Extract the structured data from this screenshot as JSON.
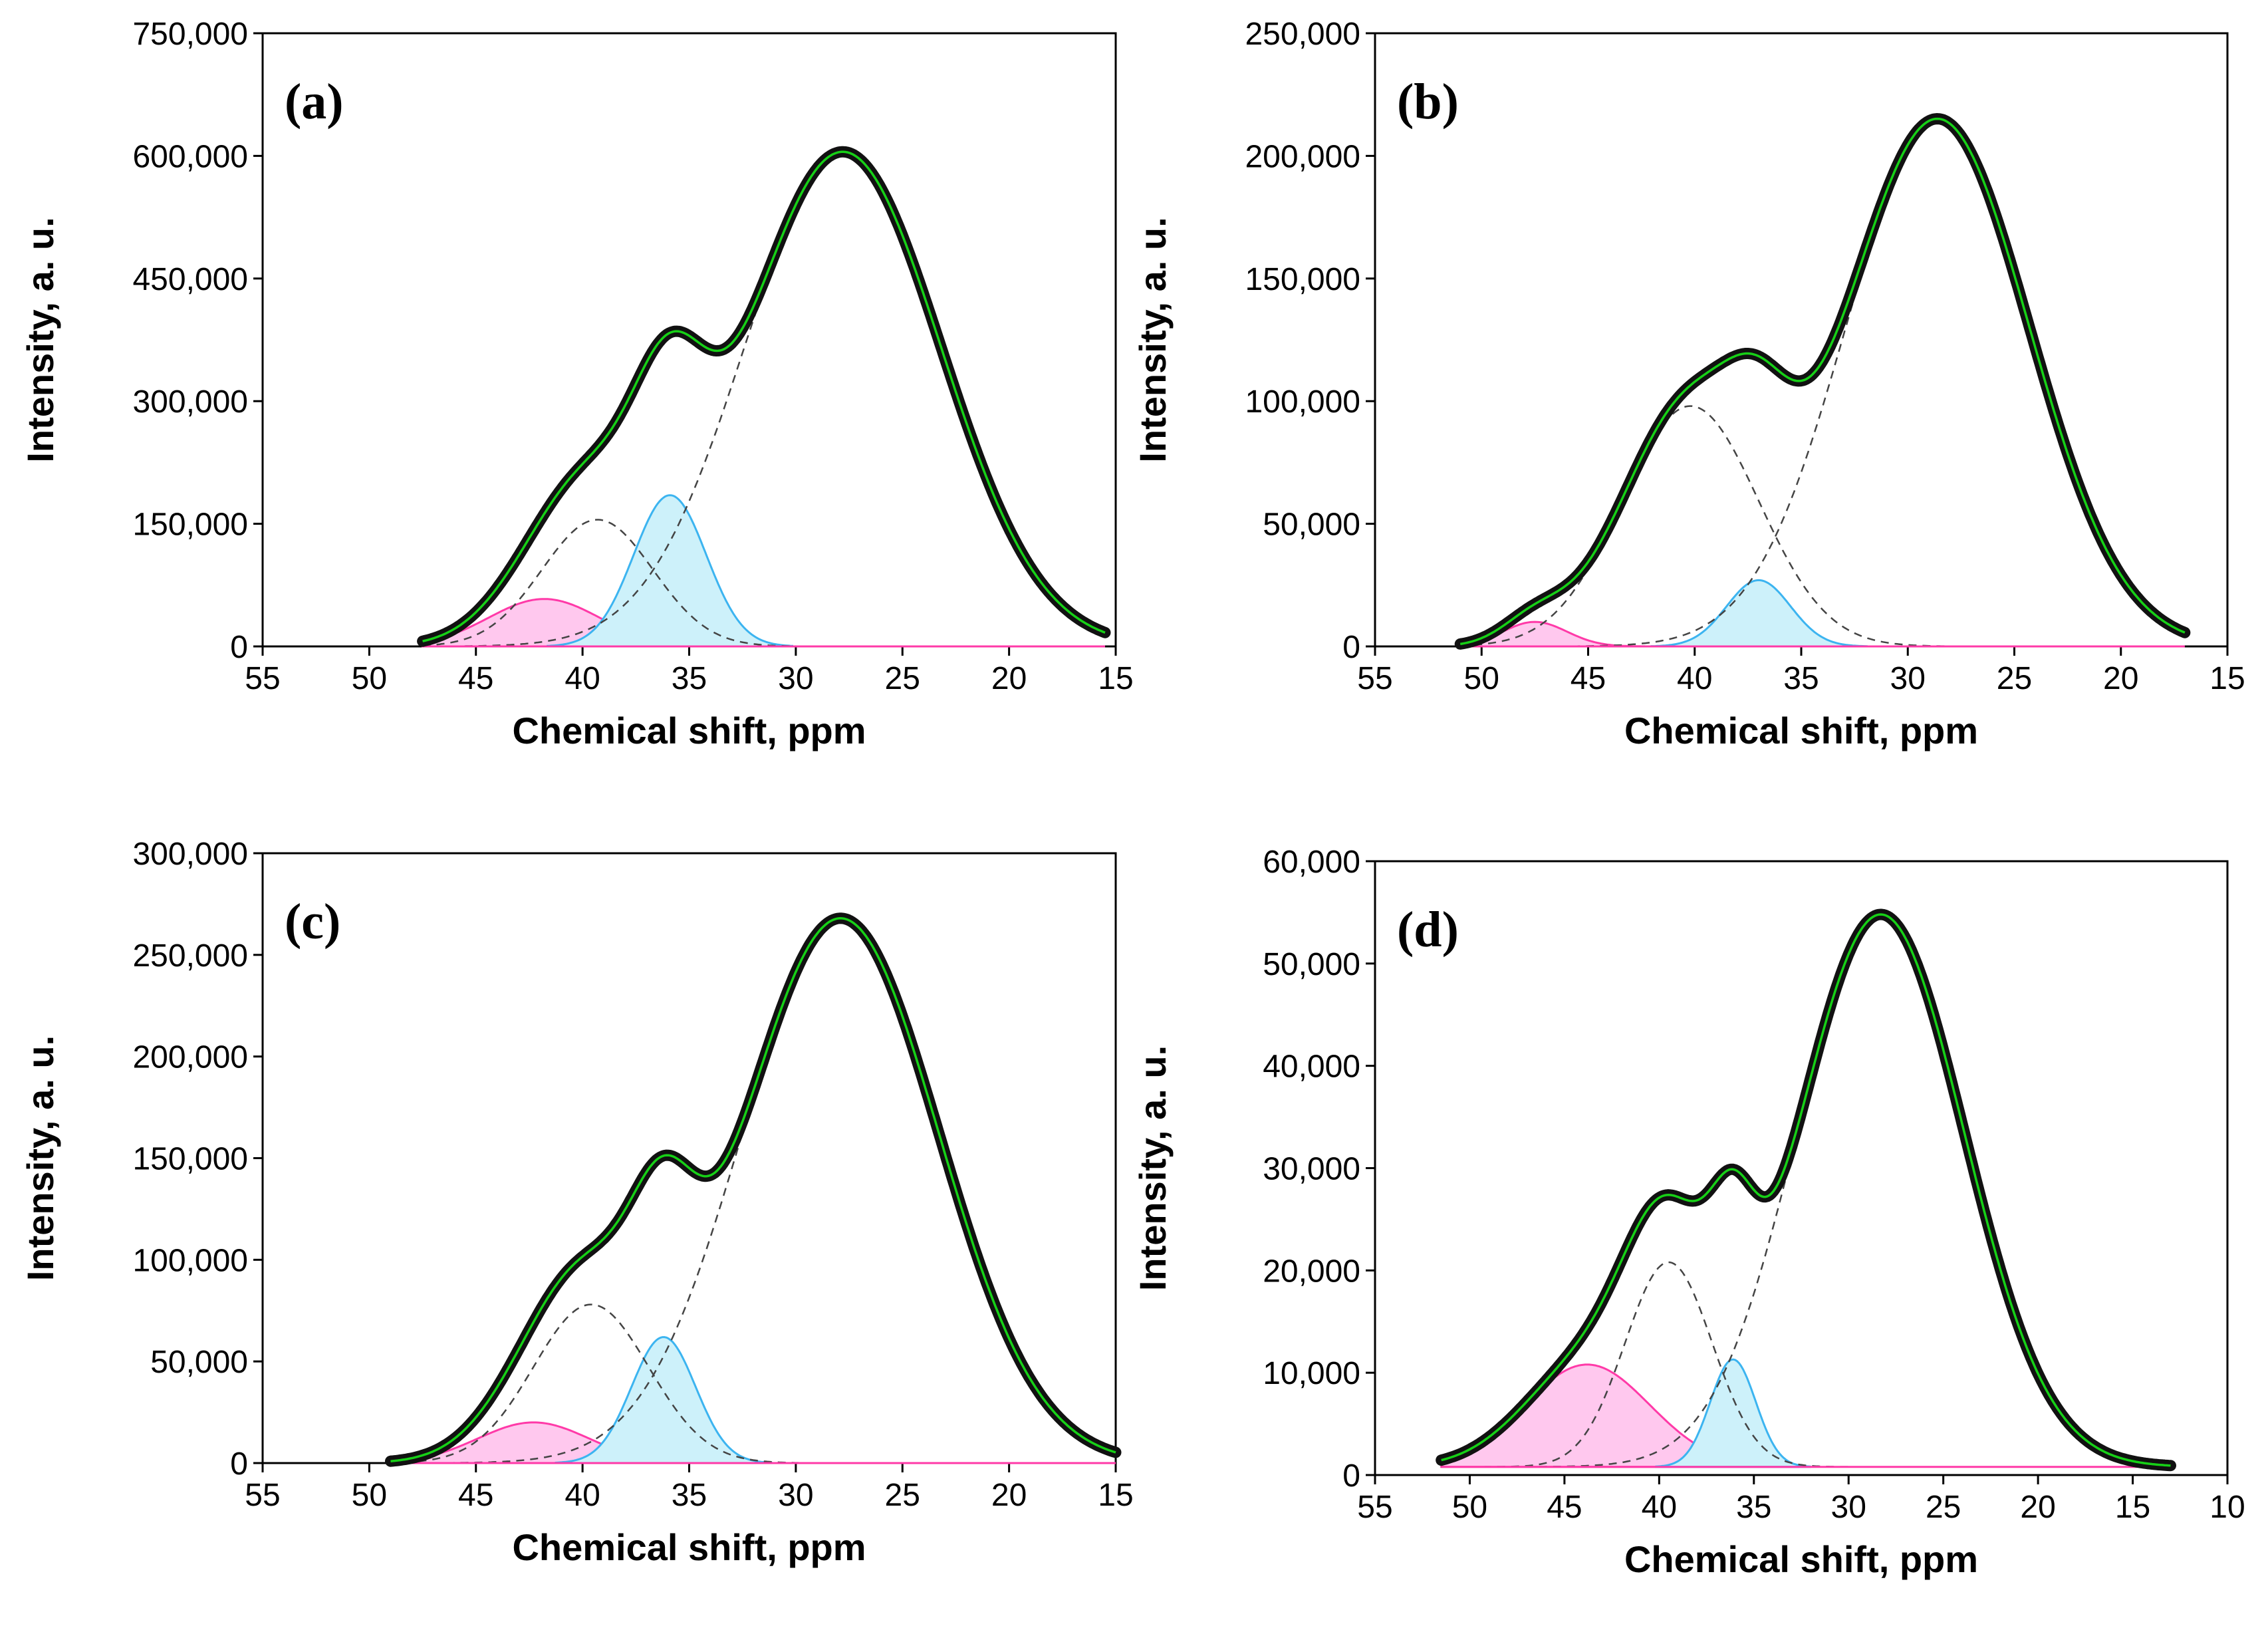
{
  "chart_data": [
    {
      "type": "line",
      "panel_label": "(a)",
      "xlabel": "Chemical shift, ppm",
      "ylabel": "Intensity, a. u.",
      "xlim": [
        55,
        15
      ],
      "ylim": [
        0,
        750000
      ],
      "xticks": [
        55,
        50,
        45,
        40,
        35,
        30,
        25,
        20,
        15
      ],
      "yticks": [
        0,
        150000,
        300000,
        450000,
        600000,
        750000
      ],
      "ytick_labels": [
        "0",
        "150,000",
        "300,000",
        "450,000",
        "600,000",
        "750,000"
      ],
      "x_range": [
        47.5,
        15.5
      ],
      "baseline": 0,
      "components": [
        {
          "name": "pink",
          "kind": "filled",
          "center": 41.8,
          "sigma": 2.6,
          "amp": 58000,
          "stroke": "#ff3aa8",
          "fill": "#ffc8ee"
        },
        {
          "name": "dashed-1",
          "kind": "dashed",
          "center": 39.3,
          "sigma": 2.6,
          "amp": 155000,
          "stroke": "#444444"
        },
        {
          "name": "blue",
          "kind": "filled",
          "center": 35.9,
          "sigma": 1.7,
          "amp": 185000,
          "stroke": "#3cb4f0",
          "fill": "#cdf1fa"
        },
        {
          "name": "dashed-2",
          "kind": "dashed",
          "center": 27.8,
          "sigma": 4.6,
          "amp": 605000,
          "stroke": "#444444"
        }
      ]
    },
    {
      "type": "line",
      "panel_label": "(b)",
      "xlabel": "Chemical shift, ppm",
      "ylabel": "Intensity, a. u.",
      "xlim": [
        55,
        15
      ],
      "ylim": [
        0,
        250000
      ],
      "xticks": [
        55,
        50,
        45,
        40,
        35,
        30,
        25,
        20,
        15
      ],
      "yticks": [
        0,
        50000,
        100000,
        150000,
        200000,
        250000
      ],
      "ytick_labels": [
        "0",
        "50,000",
        "100,000",
        "150,000",
        "200,000",
        "250,000"
      ],
      "x_range": [
        51,
        17
      ],
      "baseline": 0,
      "components": [
        {
          "name": "pink",
          "kind": "filled",
          "center": 47.5,
          "sigma": 1.5,
          "amp": 10000,
          "stroke": "#ff3aa8",
          "fill": "#ffc8ee"
        },
        {
          "name": "dashed-1",
          "kind": "dashed",
          "center": 40.2,
          "sigma": 3.2,
          "amp": 98000,
          "stroke": "#444444"
        },
        {
          "name": "blue",
          "kind": "filled",
          "center": 37.0,
          "sigma": 1.5,
          "amp": 27000,
          "stroke": "#3cb4f0",
          "fill": "#cdf1fa"
        },
        {
          "name": "dashed-2",
          "kind": "dashed",
          "center": 28.6,
          "sigma": 4.3,
          "amp": 215000,
          "stroke": "#444444"
        }
      ]
    },
    {
      "type": "line",
      "panel_label": "(c)",
      "xlabel": "Chemical shift, ppm",
      "ylabel": "Intensity, a. u.",
      "xlim": [
        55,
        15
      ],
      "ylim": [
        0,
        300000
      ],
      "xticks": [
        55,
        50,
        45,
        40,
        35,
        30,
        25,
        20,
        15
      ],
      "yticks": [
        0,
        50000,
        100000,
        150000,
        200000,
        250000,
        300000
      ],
      "ytick_labels": [
        "0",
        "50,000",
        "100,000",
        "150,000",
        "200,000",
        "250,000",
        "300,000"
      ],
      "x_range": [
        49,
        15
      ],
      "baseline": 0,
      "components": [
        {
          "name": "pink",
          "kind": "filled",
          "center": 42.3,
          "sigma": 2.6,
          "amp": 20000,
          "stroke": "#ff3aa8",
          "fill": "#ffc8ee"
        },
        {
          "name": "dashed-1",
          "kind": "dashed",
          "center": 39.6,
          "sigma": 2.7,
          "amp": 78000,
          "stroke": "#444444"
        },
        {
          "name": "blue",
          "kind": "filled",
          "center": 36.2,
          "sigma": 1.5,
          "amp": 62000,
          "stroke": "#3cb4f0",
          "fill": "#cdf1fa"
        },
        {
          "name": "dashed-2",
          "kind": "dashed",
          "center": 27.9,
          "sigma": 4.6,
          "amp": 268000,
          "stroke": "#444444"
        }
      ]
    },
    {
      "type": "line",
      "panel_label": "(d)",
      "xlabel": "Chemical shift, ppm",
      "ylabel": "Intensity, a. u.",
      "xlim": [
        55,
        10
      ],
      "ylim": [
        0,
        60000
      ],
      "xticks": [
        55,
        50,
        45,
        40,
        35,
        30,
        25,
        20,
        15,
        10
      ],
      "yticks": [
        0,
        10000,
        20000,
        30000,
        40000,
        50000,
        60000
      ],
      "ytick_labels": [
        "0",
        "10,000",
        "20,000",
        "30,000",
        "40,000",
        "50,000",
        "60,000"
      ],
      "x_range": [
        51.5,
        13
      ],
      "baseline": 800,
      "components": [
        {
          "name": "pink",
          "kind": "filled",
          "center": 43.8,
          "sigma": 3.3,
          "amp": 10000,
          "stroke": "#ff3aa8",
          "fill": "#ffc8ee"
        },
        {
          "name": "dashed-1",
          "kind": "dashed",
          "center": 39.5,
          "sigma": 2.3,
          "amp": 20000,
          "stroke": "#444444"
        },
        {
          "name": "blue",
          "kind": "filled",
          "center": 36.1,
          "sigma": 1.2,
          "amp": 10500,
          "stroke": "#3cb4f0",
          "fill": "#cdf1fa"
        },
        {
          "name": "dashed-2",
          "kind": "dashed",
          "center": 28.3,
          "sigma": 4.4,
          "amp": 54000,
          "stroke": "#444444"
        }
      ]
    }
  ],
  "style": {
    "data_color": "#111111",
    "fit_color": "#17d017",
    "dashed_color": "#444444"
  }
}
